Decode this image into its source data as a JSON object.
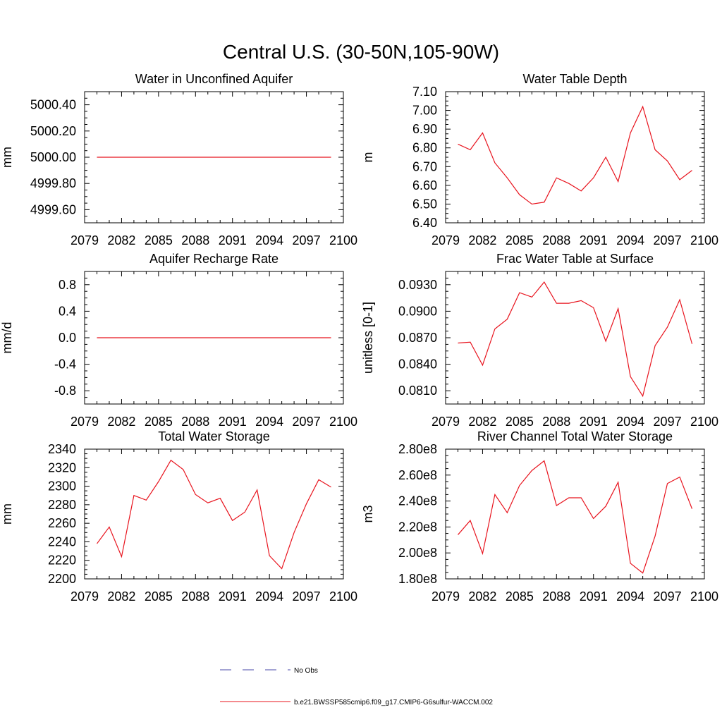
{
  "figure": {
    "title": "Central U.S. (30-50N,105-90W)"
  },
  "legend": {
    "placement": "bottom-center",
    "entries": [
      {
        "label": "No Obs",
        "color": "#4a4aa8",
        "style": "dashed"
      },
      {
        "label": "b.e21.BWSSP585cmip6.f09_g17.CMIP6-G6sulfur-WACCM.002",
        "color": "#e8141e",
        "style": "solid"
      }
    ]
  },
  "chart_data": [
    {
      "type": "line",
      "title": "Water in Unconfined Aquifer",
      "ylabel": "mm",
      "xlim": [
        2079,
        2100
      ],
      "ylim": [
        4999.5,
        5000.5
      ],
      "xticks": [
        2079,
        2082,
        2085,
        2088,
        2091,
        2094,
        2097,
        2100
      ],
      "yticks": [
        4999.6,
        4999.8,
        5000.0,
        5000.2,
        5000.4
      ],
      "ytick_labels": [
        "4999.60",
        "4999.80",
        "5000.00",
        "5000.20",
        "5000.40"
      ],
      "series": [
        {
          "color": "#e8141e",
          "x": [
            2080,
            2081,
            2082,
            2083,
            2084,
            2085,
            2086,
            2087,
            2088,
            2089,
            2090,
            2091,
            2092,
            2093,
            2094,
            2095,
            2096,
            2097,
            2098,
            2099
          ],
          "values": [
            5000,
            5000,
            5000,
            5000,
            5000,
            5000,
            5000,
            5000,
            5000,
            5000,
            5000,
            5000,
            5000,
            5000,
            5000,
            5000,
            5000,
            5000,
            5000,
            5000
          ]
        }
      ]
    },
    {
      "type": "line",
      "title": "Water Table Depth",
      "ylabel": "m",
      "xlim": [
        2079,
        2100
      ],
      "ylim": [
        6.4,
        7.1
      ],
      "xticks": [
        2079,
        2082,
        2085,
        2088,
        2091,
        2094,
        2097,
        2100
      ],
      "yticks": [
        6.4,
        6.5,
        6.6,
        6.7,
        6.8,
        6.9,
        7.0,
        7.1
      ],
      "ytick_labels": [
        "6.40",
        "6.50",
        "6.60",
        "6.70",
        "6.80",
        "6.90",
        "7.00",
        "7.10"
      ],
      "series": [
        {
          "color": "#e8141e",
          "x": [
            2080,
            2081,
            2082,
            2083,
            2084,
            2085,
            2086,
            2087,
            2088,
            2089,
            2090,
            2091,
            2092,
            2093,
            2094,
            2095,
            2096,
            2097,
            2098,
            2099
          ],
          "values": [
            6.82,
            6.79,
            6.88,
            6.72,
            6.64,
            6.55,
            6.5,
            6.51,
            6.64,
            6.61,
            6.57,
            6.64,
            6.75,
            6.62,
            6.88,
            7.02,
            6.79,
            6.73,
            6.63,
            6.68
          ]
        }
      ]
    },
    {
      "type": "line",
      "title": "Aquifer Recharge Rate",
      "ylabel": "mm/d",
      "xlim": [
        2079,
        2100
      ],
      "ylim": [
        -1.0,
        1.0
      ],
      "xticks": [
        2079,
        2082,
        2085,
        2088,
        2091,
        2094,
        2097,
        2100
      ],
      "yticks": [
        -0.8,
        -0.4,
        0.0,
        0.4,
        0.8
      ],
      "ytick_labels": [
        "-0.8",
        "-0.4",
        "0.0",
        "0.4",
        "0.8"
      ],
      "series": [
        {
          "color": "#e8141e",
          "x": [
            2080,
            2081,
            2082,
            2083,
            2084,
            2085,
            2086,
            2087,
            2088,
            2089,
            2090,
            2091,
            2092,
            2093,
            2094,
            2095,
            2096,
            2097,
            2098,
            2099
          ],
          "values": [
            0,
            0,
            0,
            0,
            0,
            0,
            0,
            0,
            0,
            0,
            0,
            0,
            0,
            0,
            0,
            0,
            0,
            0,
            0,
            0
          ]
        }
      ]
    },
    {
      "type": "line",
      "title": "Frac Water Table at Surface",
      "ylabel": "unitless [0-1]",
      "xlim": [
        2079,
        2100
      ],
      "ylim": [
        0.0795,
        0.0945
      ],
      "xticks": [
        2079,
        2082,
        2085,
        2088,
        2091,
        2094,
        2097,
        2100
      ],
      "yticks": [
        0.081,
        0.084,
        0.087,
        0.09,
        0.093
      ],
      "ytick_labels": [
        "0.0810",
        "0.0840",
        "0.0870",
        "0.0900",
        "0.0930"
      ],
      "series": [
        {
          "color": "#e8141e",
          "x": [
            2080,
            2081,
            2082,
            2083,
            2084,
            2085,
            2086,
            2087,
            2088,
            2089,
            2090,
            2091,
            2092,
            2093,
            2094,
            2095,
            2096,
            2097,
            2098,
            2099
          ],
          "values": [
            0.0864,
            0.0865,
            0.0839,
            0.088,
            0.0891,
            0.0921,
            0.0916,
            0.0933,
            0.0909,
            0.0909,
            0.0912,
            0.0904,
            0.0866,
            0.0903,
            0.0826,
            0.0804,
            0.0861,
            0.0882,
            0.0913,
            0.0863
          ]
        }
      ]
    },
    {
      "type": "line",
      "title": "Total Water Storage",
      "ylabel": "mm",
      "xlim": [
        2079,
        2100
      ],
      "ylim": [
        2200,
        2340
      ],
      "xticks": [
        2079,
        2082,
        2085,
        2088,
        2091,
        2094,
        2097,
        2100
      ],
      "yticks": [
        2200,
        2220,
        2240,
        2260,
        2280,
        2300,
        2320,
        2340
      ],
      "ytick_labels": [
        "2200",
        "2220",
        "2240",
        "2260",
        "2280",
        "2300",
        "2320",
        "2340"
      ],
      "series": [
        {
          "color": "#e8141e",
          "x": [
            2080,
            2081,
            2082,
            2083,
            2084,
            2085,
            2086,
            2087,
            2088,
            2089,
            2090,
            2091,
            2092,
            2093,
            2094,
            2095,
            2096,
            2097,
            2098,
            2099
          ],
          "values": [
            2238,
            2256,
            2224,
            2290,
            2285,
            2305,
            2328,
            2318,
            2291,
            2282,
            2287,
            2263,
            2272,
            2296,
            2225,
            2211,
            2250,
            2281,
            2307,
            2299
          ]
        }
      ]
    },
    {
      "type": "line",
      "title": "River Channel Total Water Storage",
      "ylabel": "m3",
      "xlim": [
        2079,
        2100
      ],
      "ylim": [
        180000000,
        280000000
      ],
      "xticks": [
        2079,
        2082,
        2085,
        2088,
        2091,
        2094,
        2097,
        2100
      ],
      "yticks": [
        180000000,
        200000000,
        220000000,
        240000000,
        260000000,
        280000000
      ],
      "ytick_labels": [
        "1.80e8",
        "2.00e8",
        "2.20e8",
        "2.40e8",
        "2.60e8",
        "2.80e8"
      ],
      "series": [
        {
          "color": "#e8141e",
          "x": [
            2080,
            2081,
            2082,
            2083,
            2084,
            2085,
            2086,
            2087,
            2088,
            2089,
            2090,
            2091,
            2092,
            2093,
            2094,
            2095,
            2096,
            2097,
            2098,
            2099
          ],
          "values": [
            214000000,
            225000000,
            199500000,
            245000000,
            231000000,
            252000000,
            263500000,
            271000000,
            236500000,
            242500000,
            242500000,
            226500000,
            236000000,
            254500000,
            192000000,
            184500000,
            213000000,
            253500000,
            258500000,
            234000000
          ]
        }
      ]
    }
  ]
}
